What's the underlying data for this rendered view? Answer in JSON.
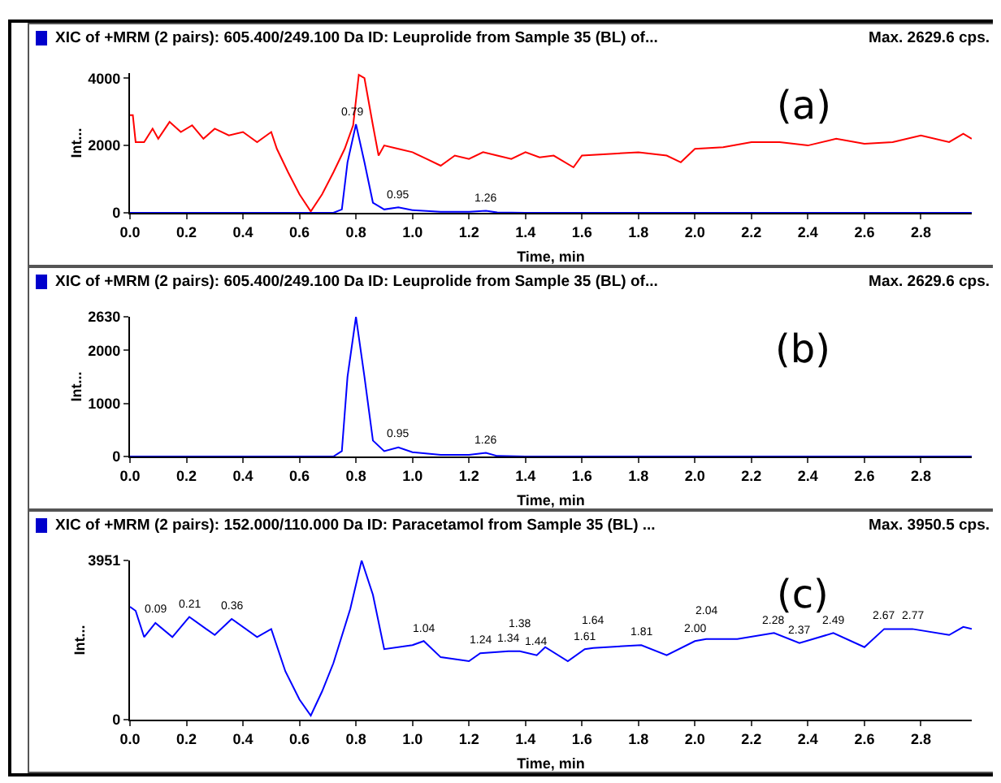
{
  "chart_data": [
    {
      "type": "line",
      "title": "XIC of +MRM (2 pairs): 605.400/249.100 Da ID: Leuprolide from Sample 35 (BL) of...",
      "subtitle": "Max. 2629.6 cps.",
      "xlabel": "Time, min",
      "ylabel": "Int...",
      "xlim": [
        0,
        2.98
      ],
      "xticks": [
        {
          "value": 0,
          "label": "0.0"
        },
        0.2,
        0.4,
        0.6,
        0.8,
        {
          "value": 1,
          "label": "1.0"
        },
        1.2,
        1.4,
        1.6,
        1.8,
        {
          "value": 2,
          "label": "2.0"
        },
        2.2,
        2.4,
        2.6,
        2.8
      ],
      "ylim": [
        0,
        4150
      ],
      "yticks": [
        0,
        2000,
        4000
      ],
      "grid": false,
      "series": [
        {
          "color": "#ff0000",
          "x": [
            0,
            0.01,
            0.02,
            0.05,
            0.08,
            0.1,
            0.14,
            0.18,
            0.22,
            0.26,
            0.3,
            0.35,
            0.4,
            0.45,
            0.5,
            0.52,
            0.56,
            0.6,
            0.64,
            0.68,
            0.72,
            0.76,
            0.79,
            0.81,
            0.83,
            0.86,
            0.88,
            0.9,
            0.95,
            1.0,
            1.05,
            1.1,
            1.15,
            1.2,
            1.25,
            1.3,
            1.35,
            1.4,
            1.45,
            1.5,
            1.57,
            1.6,
            1.7,
            1.8,
            1.9,
            1.95,
            2.0,
            2.1,
            2.2,
            2.3,
            2.4,
            2.5,
            2.6,
            2.7,
            2.8,
            2.9,
            2.95,
            2.98
          ],
          "values": [
            2900,
            2900,
            2100,
            2100,
            2500,
            2200,
            2700,
            2400,
            2600,
            2200,
            2500,
            2300,
            2400,
            2100,
            2400,
            1900,
            1200,
            550,
            40,
            550,
            1200,
            1900,
            2600,
            4100,
            4000,
            2600,
            1700,
            2000,
            1900,
            1800,
            1600,
            1400,
            1700,
            1600,
            1800,
            1700,
            1600,
            1800,
            1650,
            1700,
            1350,
            1700,
            1750,
            1800,
            1700,
            1500,
            1900,
            1950,
            2100,
            2100,
            2000,
            2200,
            2050,
            2100,
            2300,
            2100,
            2350,
            2200
          ]
        },
        {
          "color": "#0000ff",
          "x": [
            0,
            0.72,
            0.75,
            0.77,
            0.8,
            0.83,
            0.86,
            0.9,
            0.95,
            1.0,
            1.1,
            1.2,
            1.26,
            1.3,
            1.4,
            2.98
          ],
          "values": [
            0,
            0,
            100,
            1500,
            2630,
            1500,
            300,
            100,
            160,
            80,
            30,
            30,
            60,
            10,
            0,
            0
          ]
        }
      ],
      "annotations": [
        "(a)",
        {
          "text": "0.79",
          "x": 0.79,
          "y": 2630
        },
        {
          "text": "0.95",
          "x": 0.95,
          "y": 160
        },
        {
          "text": "1.26",
          "x": 1.26,
          "y": 60
        }
      ]
    },
    {
      "type": "line",
      "title": "XIC of +MRM (2 pairs): 605.400/249.100 Da ID: Leuprolide from Sample 35 (BL) of...",
      "subtitle": "Max. 2629.6 cps.",
      "xlabel": "Time, min",
      "ylabel": "Int...",
      "xlim": [
        0,
        2.98
      ],
      "xticks": [
        {
          "value": 0,
          "label": "0.0"
        },
        0.2,
        0.4,
        0.6,
        0.8,
        {
          "value": 1,
          "label": "1.0"
        },
        1.2,
        1.4,
        1.6,
        1.8,
        {
          "value": 2,
          "label": "2.0"
        },
        2.2,
        2.4,
        2.6,
        2.8
      ],
      "ylim": [
        0,
        2630
      ],
      "yticks": [
        0,
        1000,
        2000,
        2630
      ],
      "grid": false,
      "series": [
        {
          "color": "#0000ff",
          "x": [
            0,
            0.72,
            0.75,
            0.77,
            0.8,
            0.83,
            0.86,
            0.9,
            0.95,
            1.0,
            1.1,
            1.2,
            1.26,
            1.3,
            1.4,
            2.98
          ],
          "values": [
            0,
            0,
            100,
            1500,
            2630,
            1500,
            300,
            100,
            170,
            80,
            30,
            30,
            70,
            10,
            0,
            0
          ]
        }
      ],
      "annotations": [
        "(b)",
        {
          "text": "0.95",
          "x": 0.95,
          "y": 170
        },
        {
          "text": "1.26",
          "x": 1.26,
          "y": 70
        }
      ]
    },
    {
      "type": "line",
      "title": "XIC of +MRM (2 pairs): 152.000/110.000 Da ID: Paracetamol from Sample 35 (BL) ...",
      "subtitle": "Max. 3950.5 cps.",
      "xlabel": "Time, min",
      "ylabel": "Int...",
      "xlim": [
        0,
        2.98
      ],
      "xticks": [
        {
          "value": 0,
          "label": "0.0"
        },
        0.2,
        0.4,
        0.6,
        0.8,
        {
          "value": 1,
          "label": "1.0"
        },
        1.2,
        1.4,
        1.6,
        1.8,
        {
          "value": 2,
          "label": "2.0"
        },
        2.2,
        2.4,
        2.6,
        2.8
      ],
      "ylim": [
        0,
        3951
      ],
      "yticks": [
        0,
        3951
      ],
      "grid": false,
      "series": [
        {
          "color": "#0000ff",
          "x": [
            0,
            0.02,
            0.05,
            0.09,
            0.15,
            0.21,
            0.3,
            0.36,
            0.45,
            0.5,
            0.55,
            0.6,
            0.64,
            0.68,
            0.72,
            0.78,
            0.82,
            0.86,
            0.9,
            1.0,
            1.04,
            1.1,
            1.2,
            1.24,
            1.34,
            1.38,
            1.44,
            1.47,
            1.55,
            1.61,
            1.64,
            1.81,
            1.9,
            2.0,
            2.04,
            2.15,
            2.28,
            2.37,
            2.49,
            2.6,
            2.67,
            2.77,
            2.9,
            2.95,
            2.98
          ],
          "values": [
            2800,
            2700,
            2050,
            2400,
            2050,
            2550,
            2100,
            2500,
            2050,
            2250,
            1200,
            500,
            100,
            700,
            1400,
            2750,
            3951,
            3100,
            1750,
            1850,
            1950,
            1550,
            1450,
            1650,
            1700,
            1700,
            1600,
            1800,
            1450,
            1750,
            1780,
            1850,
            1600,
            1950,
            2000,
            2000,
            2150,
            1900,
            2150,
            1800,
            2250,
            2250,
            2100,
            2300,
            2250
          ]
        }
      ],
      "annotations": [
        "(c)",
        {
          "text": "0.09",
          "x": 0.09,
          "y": 2400
        },
        {
          "text": "0.21",
          "x": 0.21,
          "y": 2550
        },
        {
          "text": "0.36",
          "x": 0.36,
          "y": 2500
        },
        {
          "text": "1.04",
          "x": 1.04,
          "y": 1950
        },
        {
          "text": "1.24",
          "x": 1.24,
          "y": 1650
        },
        {
          "text": "1.34",
          "x": 1.34,
          "y": 1700
        },
        {
          "text": "1.38",
          "x": 1.38,
          "y": 1700
        },
        {
          "text": "1.44",
          "x": 1.44,
          "y": 1600
        },
        {
          "text": "1.61",
          "x": 1.61,
          "y": 1750
        },
        {
          "text": "1.64",
          "x": 1.64,
          "y": 1780
        },
        {
          "text": "1.81",
          "x": 1.81,
          "y": 1850
        },
        {
          "text": "2.00",
          "x": 2.0,
          "y": 1950
        },
        {
          "text": "2.04",
          "x": 2.04,
          "y": 2000
        },
        {
          "text": "2.28",
          "x": 2.28,
          "y": 2150
        },
        {
          "text": "2.37",
          "x": 2.37,
          "y": 1900
        },
        {
          "text": "2.49",
          "x": 2.49,
          "y": 2150
        },
        {
          "text": "2.67",
          "x": 2.67,
          "y": 2250
        },
        {
          "text": "2.77",
          "x": 2.77,
          "y": 2250
        }
      ]
    }
  ]
}
